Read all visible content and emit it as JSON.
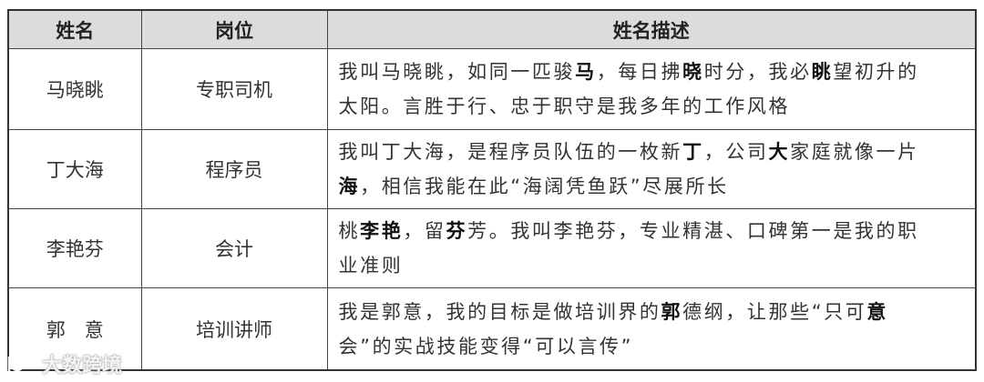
{
  "table": {
    "headers": [
      "姓名",
      "岗位",
      "姓名描述"
    ],
    "rows": [
      {
        "name": "马晓眺",
        "position": "专职司机",
        "lines": [
          [
            {
              "t": "我叫马晓眺，如同一匹骏",
              "b": false
            },
            {
              "t": "马",
              "b": true
            },
            {
              "t": "，每日拂",
              "b": false
            },
            {
              "t": "晓",
              "b": true
            },
            {
              "t": "时分，我必",
              "b": false
            },
            {
              "t": "眺",
              "b": true
            },
            {
              "t": "望初升的",
              "b": false
            }
          ],
          [
            {
              "t": "太阳。言胜于行、忠于职守是我多年的工作风格",
              "b": false
            }
          ]
        ]
      },
      {
        "name": "丁大海",
        "position": "程序员",
        "lines": [
          [
            {
              "t": "我叫丁大海，是程序员队伍的一枚新",
              "b": false
            },
            {
              "t": "丁",
              "b": true
            },
            {
              "t": "，公司",
              "b": false
            },
            {
              "t": "大",
              "b": true
            },
            {
              "t": "家庭就像一片",
              "b": false
            }
          ],
          [
            {
              "t": "海",
              "b": true
            },
            {
              "t": "，相信我能在此“海阔凭鱼跃”尽展所长",
              "b": false
            }
          ]
        ]
      },
      {
        "name": "李艳芬",
        "position": "会计",
        "lines": [
          [
            {
              "t": "桃",
              "b": false
            },
            {
              "t": "李艳",
              "b": true
            },
            {
              "t": "，留",
              "b": false
            },
            {
              "t": "芬",
              "b": true
            },
            {
              "t": "芳。我叫李艳芬，专业精湛、口碑第一是我的职",
              "b": false
            }
          ],
          [
            {
              "t": "业准则",
              "b": false
            }
          ]
        ]
      },
      {
        "name": "郭　意",
        "position": "培训讲师",
        "lines": [
          [
            {
              "t": "我是郭意，我的目标是做培训界的",
              "b": false
            },
            {
              "t": "郭",
              "b": true
            },
            {
              "t": "德纲，让那些“只可",
              "b": false
            },
            {
              "t": "意",
              "b": true
            }
          ],
          [
            {
              "t": "会”的实战技能变得“可以言传”",
              "b": false
            }
          ]
        ]
      }
    ]
  },
  "watermark": {
    "text": "大数跨境",
    "icon": "brand-logo-icon"
  }
}
